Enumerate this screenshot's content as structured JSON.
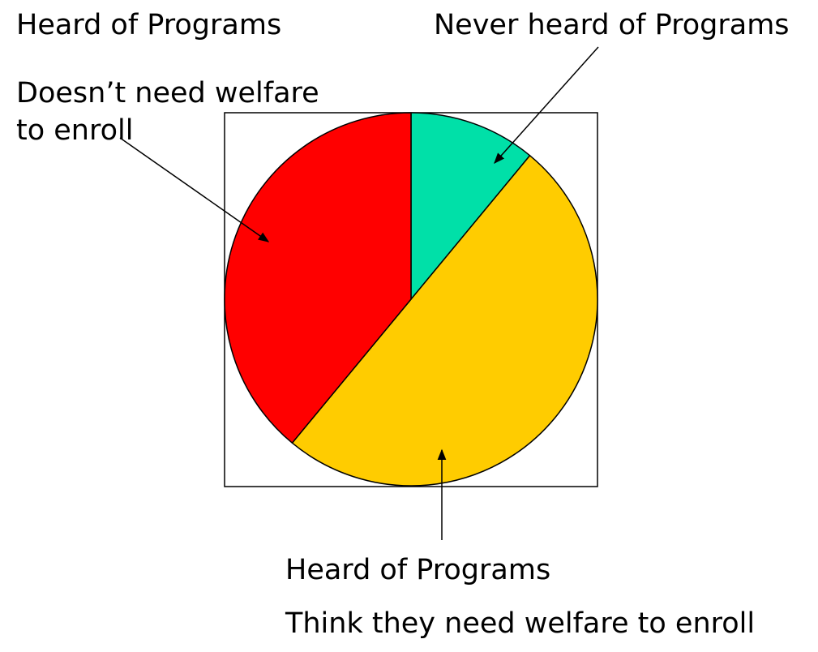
{
  "chart_data": {
    "type": "pie",
    "title": "",
    "slices": [
      {
        "name": "Never heard of Programs",
        "value": 11,
        "color": "#00E0A8"
      },
      {
        "name": "Heard of Programs - Think they need welfare to enroll",
        "value": 50,
        "color": "#FFCC00"
      },
      {
        "name": "Heard of Programs - Doesn't need welfare to enroll",
        "value": 39,
        "color": "#FF0000"
      }
    ],
    "start_angle_deg": 0,
    "direction": "clockwise",
    "frame": true,
    "legend": "none",
    "annotations": {
      "top_left_heading": "Heard of Programs",
      "top_left_detail_line1": "Doesn’t need welfare",
      "top_left_detail_line2": "to enroll",
      "top_right": "Never heard of Programs",
      "bottom_heading": "Heard of Programs",
      "bottom_detail": "Think they need welfare to enroll"
    }
  }
}
